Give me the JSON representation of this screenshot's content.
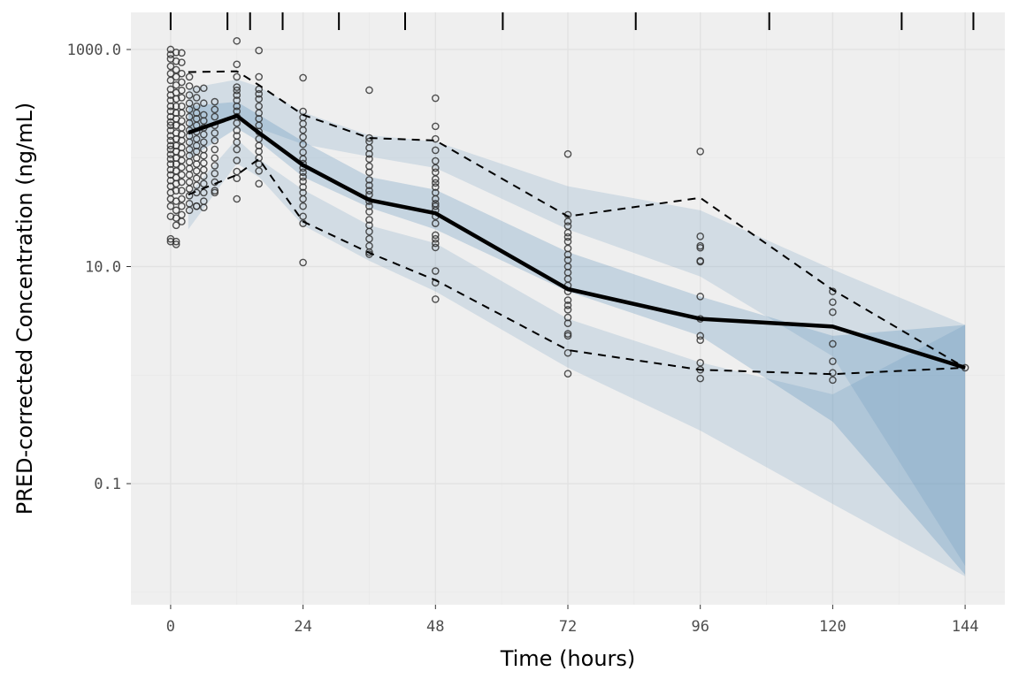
{
  "chart_data": {
    "type": "line",
    "title": "",
    "xlabel": "Time (hours)",
    "ylabel": "PRED-corrected Concentration (ng/mL)",
    "xlim": [
      -7.2,
      151.2
    ],
    "ylim": [
      0.00766,
      2198
    ],
    "y_scale": "log10",
    "x_ticks": [
      0,
      24,
      48,
      72,
      96,
      120,
      144
    ],
    "x_tick_labels": [
      "0",
      "24",
      "48",
      "72",
      "96",
      "120",
      "144"
    ],
    "y_ticks": [
      0.1,
      10,
      1000
    ],
    "y_tick_labels": [
      "0.1",
      "10.0",
      "1000.0"
    ],
    "grid": true,
    "legend": "none",
    "colors": {
      "panel": "#efefef",
      "grid": "#e2e2e2",
      "band": "#4682b4",
      "line": "#000000",
      "points": "#333333"
    },
    "bin_boundaries": [
      0,
      10.3,
      14.4,
      20.3,
      30.5,
      42.5,
      60.2,
      84.3,
      108.5,
      132.5,
      145.5
    ],
    "bin_times": [
      3.2,
      12,
      16,
      24,
      36,
      48,
      72,
      96,
      120,
      144
    ],
    "observed_lines": [
      {
        "role": "median",
        "style": "solid",
        "values": [
          171,
          245,
          171,
          86,
          41,
          31,
          6.2,
          3.3,
          2.8,
          1.17
        ]
      },
      {
        "role": "upper-percentile",
        "style": "dashed",
        "values": [
          620,
          630,
          470,
          250,
          153,
          145,
          29,
          43,
          6.1,
          1.17
        ]
      },
      {
        "role": "lower-percentile",
        "style": "dashed",
        "values": [
          46,
          70,
          98,
          26,
          13.4,
          7.5,
          1.7,
          1.12,
          1.02,
          1.17
        ]
      }
    ],
    "simulated_bands": [
      {
        "role": "upper-percentile-ci",
        "lo": [
          162,
          250,
          188,
          134,
          103,
          81,
          22,
          8.1,
          1.49,
          0.0175
        ],
        "hi": [
          438,
          528,
          455,
          264,
          162,
          142,
          55,
          33,
          9.4,
          2.9
        ]
      },
      {
        "role": "median-ci",
        "lo": [
          98,
          188,
          142,
          67,
          35,
          22,
          5.9,
          2.3,
          0.372,
          0.0145
        ],
        "hi": [
          300,
          330,
          250,
          142,
          67,
          51,
          13.6,
          5.3,
          2.3,
          2.9
        ]
      },
      {
        "role": "lower-percentile-ci",
        "lo": [
          22,
          89,
          67,
          24,
          11.3,
          5.9,
          1.17,
          0.308,
          0.065,
          0.014
        ],
        "hi": [
          46,
          150,
          98,
          51,
          24,
          16.4,
          3.3,
          1.31,
          0.665,
          2.9
        ]
      }
    ],
    "observations": [
      {
        "time": 0,
        "conc": [
          1000,
          900,
          820,
          700,
          600,
          520,
          430,
          380,
          340,
          300,
          270,
          240,
          215,
          200,
          180,
          160,
          145,
          130,
          120,
          108,
          98,
          88,
          78,
          70,
          62,
          55,
          48,
          42,
          36,
          29,
          18,
          17
        ]
      },
      {
        "time": 1,
        "conc": [
          940,
          780,
          650,
          560,
          470,
          400,
          350,
          300,
          260,
          230,
          200,
          170,
          150,
          130,
          115,
          100,
          88,
          76,
          66,
          58,
          50,
          40,
          33,
          28,
          24,
          17,
          16
        ]
      },
      {
        "time": 2,
        "conc": [
          930,
          760,
          600,
          500,
          420,
          360,
          300,
          260,
          220,
          190,
          165,
          145,
          125,
          110,
          95,
          82,
          70,
          60,
          50,
          42,
          36,
          30,
          26
        ]
      },
      {
        "time": 3.4,
        "conc": [
          560,
          460,
          380,
          320,
          280,
          240,
          210,
          180,
          160,
          140,
          120,
          105,
          92,
          80,
          70,
          60,
          52,
          45,
          38,
          33
        ]
      },
      {
        "time": 4.7,
        "conc": [
          430,
          360,
          300,
          260,
          230,
          200,
          175,
          150,
          130,
          115,
          100,
          88,
          76,
          65,
          56,
          48,
          36,
          36
        ]
      },
      {
        "time": 6,
        "conc": [
          440,
          320,
          250,
          220,
          190,
          165,
          140,
          120,
          105,
          90,
          78,
          68,
          58,
          48,
          40,
          35
        ]
      },
      {
        "time": 8,
        "conc": [
          330,
          280,
          240,
          200,
          170,
          145,
          120,
          100,
          85,
          72,
          60,
          50,
          48
        ]
      },
      {
        "time": 12,
        "conc": [
          1200,
          730,
          560,
          450,
          420,
          380,
          340,
          300,
          270,
          240,
          210,
          180,
          160,
          140,
          120,
          95,
          75,
          65,
          42
        ]
      },
      {
        "time": 16,
        "conc": [
          980,
          560,
          430,
          390,
          350,
          300,
          260,
          230,
          200,
          175,
          150,
          130,
          115,
          100,
          88,
          76,
          58
        ]
      },
      {
        "time": 24,
        "conc": [
          549,
          269,
          236,
          207,
          181,
          156,
          134,
          113,
          98,
          89,
          81,
          74,
          67,
          61,
          54,
          48,
          42,
          36,
          29,
          25,
          10.9
        ]
      },
      {
        "time": 36,
        "conc": [
          422,
          153,
          142,
          124,
          109,
          98,
          84,
          74,
          63,
          56,
          50,
          46,
          40,
          36,
          32,
          27,
          24,
          21,
          18,
          15.5,
          13.6,
          13
        ]
      },
      {
        "time": 48,
        "conc": [
          356,
          196,
          150,
          118,
          94,
          81,
          74,
          64,
          59,
          54,
          48,
          42,
          38,
          36,
          33,
          29,
          25,
          19.5,
          18,
          16.4,
          15,
          9.1,
          7.1,
          5
        ]
      },
      {
        "time": 72,
        "conc": [
          109,
          30,
          26,
          23.6,
          20.5,
          18.7,
          17,
          14.7,
          12.9,
          11.5,
          10,
          8.8,
          7.7,
          6.7,
          5.9,
          4.9,
          4.4,
          4,
          3.4,
          3,
          2.4,
          2.3,
          1.6,
          1.03
        ]
      },
      {
        "time": 96,
        "conc": [
          115,
          19,
          15.5,
          14.9,
          11.3,
          11.1,
          5.3,
          3.3,
          2.3,
          2.1,
          1.3,
          1.12,
          0.93
        ]
      },
      {
        "time": 120,
        "conc": [
          5.9,
          4.7,
          3.8,
          1.94,
          1.34,
          1.05,
          0.9
        ]
      },
      {
        "time": 144,
        "conc": [
          1.17
        ]
      }
    ]
  }
}
